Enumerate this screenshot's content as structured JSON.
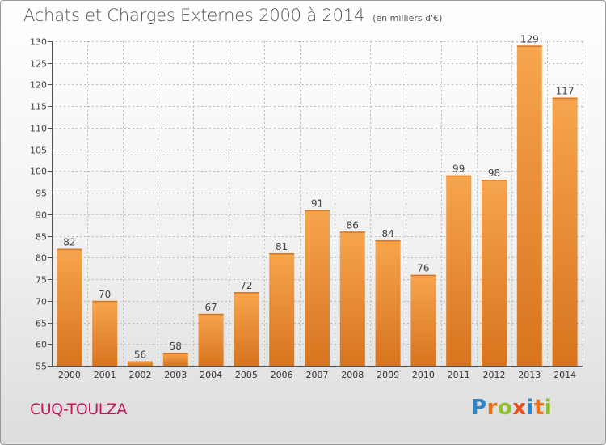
{
  "title": "Achats et Charges Externes 2000 à 2014",
  "unit_note": "(en milliers d'€)",
  "commune": "CUQ-TOULZA",
  "logo": {
    "text": "Proxiti",
    "letter_colors": [
      "#2b88c8",
      "#e8711c",
      "#8fbf2a",
      "#e94e1b",
      "#2b88c8",
      "#e8711c",
      "#8fbf2a"
    ]
  },
  "colors": {
    "bar_light": "#f6a54e",
    "bar_dark": "#d8741e",
    "axis": "#555555",
    "grid": "#bbbbbb",
    "commune": "#c2185b"
  },
  "chart_data": {
    "type": "bar",
    "categories": [
      "2000",
      "2001",
      "2002",
      "2003",
      "2004",
      "2005",
      "2006",
      "2007",
      "2008",
      "2009",
      "2010",
      "2011",
      "2012",
      "2013",
      "2014"
    ],
    "values": [
      82,
      70,
      56,
      58,
      67,
      72,
      81,
      91,
      86,
      84,
      76,
      99,
      98,
      129,
      117
    ],
    "ylim": [
      55,
      130
    ],
    "yticks": [
      55,
      60,
      65,
      70,
      75,
      80,
      85,
      90,
      95,
      100,
      105,
      110,
      115,
      120,
      125,
      130
    ],
    "grid": true,
    "data_labels": true
  }
}
